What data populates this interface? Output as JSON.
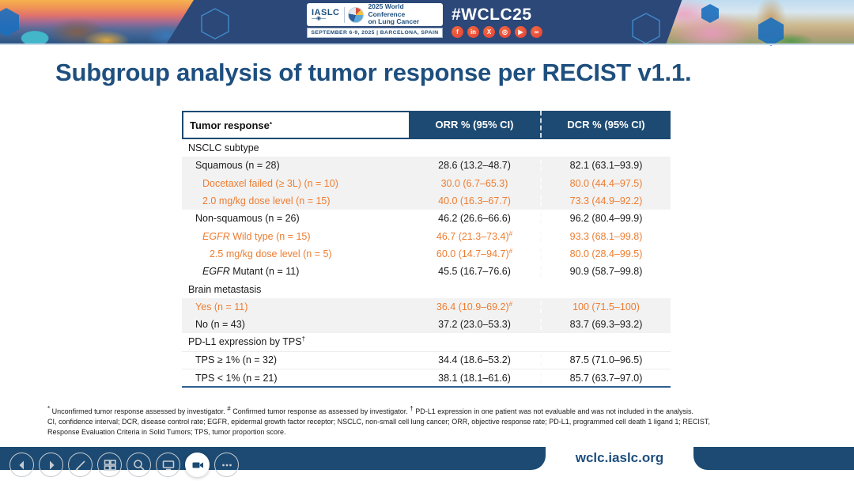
{
  "banner": {
    "iaslc_label": "IASLC",
    "conference_line1": "2025 World Conference",
    "conference_line2": "on Lung Cancer",
    "date_location": "SEPTEMBER 6-9, 2025  |  BARCELONA, SPAIN",
    "hashtag": "#WCLC25",
    "social": [
      {
        "name": "facebook-icon",
        "glyph": "f"
      },
      {
        "name": "linkedin-icon",
        "glyph": "in"
      },
      {
        "name": "x-icon",
        "glyph": "X"
      },
      {
        "name": "instagram-icon",
        "glyph": "◎"
      },
      {
        "name": "youtube-icon",
        "glyph": "▶"
      },
      {
        "name": "share-icon",
        "glyph": "∞"
      }
    ],
    "colors": {
      "banner_blue": "#2b4878",
      "social_orange": "#e8503a"
    }
  },
  "slide": {
    "title": "Subgroup analysis of tumor response per RECIST v1.1.",
    "table": {
      "header": {
        "col1": "Tumor response",
        "col1_sup": "*",
        "col2": "ORR % (95% CI)",
        "col3": "DCR % (95% CI)"
      },
      "rows": [
        {
          "label_parts": [
            {
              "text": "NSCLC subtype"
            }
          ],
          "indent": 0,
          "bg": "white",
          "color": "default",
          "orr": "",
          "dcr": ""
        },
        {
          "label_parts": [
            {
              "text": "Squamous (n = 28)"
            }
          ],
          "indent": 1,
          "bg": "gray",
          "color": "default",
          "orr": "28.6 (13.2–48.7)",
          "dcr": "82.1 (63.1–93.9)"
        },
        {
          "label_parts": [
            {
              "text": "Docetaxel failed (≥ 3L) (n = 10)"
            }
          ],
          "indent": 2,
          "bg": "gray",
          "color": "orange",
          "orr": "30.0 (6.7–65.3)",
          "dcr": "80.0 (44.4–97.5)"
        },
        {
          "label_parts": [
            {
              "text": "2.0 mg/kg dose level (n = 15)"
            }
          ],
          "indent": 2,
          "bg": "gray",
          "color": "orange",
          "orr": "40.0 (16.3–67.7)",
          "dcr": "73.3 (44.9–92.2)"
        },
        {
          "label_parts": [
            {
              "text": "Non-squamous (n = 26)"
            }
          ],
          "indent": 1,
          "bg": "white",
          "color": "default",
          "orr": "46.2 (26.6–66.6)",
          "dcr": "96.2 (80.4–99.9)"
        },
        {
          "label_parts": [
            {
              "text": "EGFR",
              "italic": true
            },
            {
              "text": " Wild type (n = 15)"
            }
          ],
          "indent": 2,
          "bg": "white",
          "color": "orange",
          "orr": "46.7 (21.3–73.4)",
          "orr_sup": "#",
          "dcr": "93.3 (68.1–99.8)"
        },
        {
          "label_parts": [
            {
              "text": "2.5 mg/kg dose level (n = 5)"
            }
          ],
          "indent": 3,
          "bg": "white",
          "color": "orange",
          "orr": "60.0 (14.7–94.7)",
          "orr_sup": "#",
          "dcr": "80.0 (28.4–99.5)"
        },
        {
          "label_parts": [
            {
              "text": "EGFR",
              "italic": true
            },
            {
              "text": " Mutant (n = 11)"
            }
          ],
          "indent": 2,
          "bg": "white",
          "color": "default",
          "orr": "45.5 (16.7–76.6)",
          "dcr": "90.9 (58.7–99.8)"
        },
        {
          "label_parts": [
            {
              "text": "Brain metastasis"
            }
          ],
          "indent": 0,
          "bg": "white",
          "color": "default",
          "orr": "",
          "dcr": ""
        },
        {
          "label_parts": [
            {
              "text": "Yes (n = 11)"
            }
          ],
          "indent": 1,
          "bg": "gray",
          "color": "orange",
          "orr": "36.4 (10.9–69.2)",
          "orr_sup": "#",
          "dcr": "100 (71.5–100)"
        },
        {
          "label_parts": [
            {
              "text": "No (n = 43)"
            }
          ],
          "indent": 1,
          "bg": "gray",
          "color": "default",
          "orr": "37.2 (23.0–53.3)",
          "dcr": "83.7 (69.3–93.2)"
        },
        {
          "label_parts": [
            {
              "text": "PD-L1 expression by TPS"
            },
            {
              "text": "†",
              "sup": true
            }
          ],
          "indent": 0,
          "bg": "white",
          "color": "default",
          "orr": "",
          "dcr": ""
        },
        {
          "label_parts": [
            {
              "text": "TPS ≥ 1% (n = 32)"
            }
          ],
          "indent": 1,
          "bg": "white",
          "color": "default",
          "hr": true,
          "orr": "34.4 (18.6–53.2)",
          "dcr": "87.5 (71.0–96.5)"
        },
        {
          "label_parts": [
            {
              "text": "TPS < 1% (n = 21)"
            }
          ],
          "indent": 1,
          "bg": "white",
          "color": "default",
          "hr": true,
          "orr": "38.1 (18.1–61.6)",
          "dcr": "85.7 (63.7–97.0)"
        }
      ]
    },
    "footnotes": {
      "line1_parts": [
        {
          "marker": "*",
          "text": "Unconfirmed tumor response assessed by investigator. "
        },
        {
          "marker": "#",
          "text": "Confirmed tumor response as assessed by investigator. "
        },
        {
          "marker": "†",
          "text": "PD-L1 expression in one patient was not evaluable and was not included in the analysis."
        }
      ],
      "line2": "CI, confidence interval; DCR, disease control rate; EGFR, epidermal growth factor receptor; NSCLC, non-small cell lung cancer; ORR, objective response rate; PD-L1, programmed cell death 1 ligand 1; RECIST,",
      "line3": "Response Evaluation Criteria in Solid Tumors; TPS, tumor proportion score."
    },
    "accent_colors": {
      "table_header_blue": "#1c4a72",
      "title_blue": "#1e4f7e",
      "highlight_orange": "#ED7D31",
      "row_gray": "#f2f2f2"
    }
  },
  "footer": {
    "url": "wclc.iaslc.org",
    "controls": [
      {
        "name": "previous-button",
        "icon": "chevron-left-icon",
        "active": false
      },
      {
        "name": "next-button",
        "icon": "chevron-right-icon",
        "active": false
      },
      {
        "name": "pen-button",
        "icon": "pen-icon",
        "active": false
      },
      {
        "name": "slides-button",
        "icon": "grid-icon",
        "active": false
      },
      {
        "name": "zoom-button",
        "icon": "magnifier-icon",
        "active": false
      },
      {
        "name": "display-button",
        "icon": "monitor-icon",
        "active": false
      },
      {
        "name": "camera-button",
        "icon": "camera-icon",
        "active": true
      },
      {
        "name": "more-button",
        "icon": "ellipsis-icon",
        "active": false
      }
    ]
  }
}
